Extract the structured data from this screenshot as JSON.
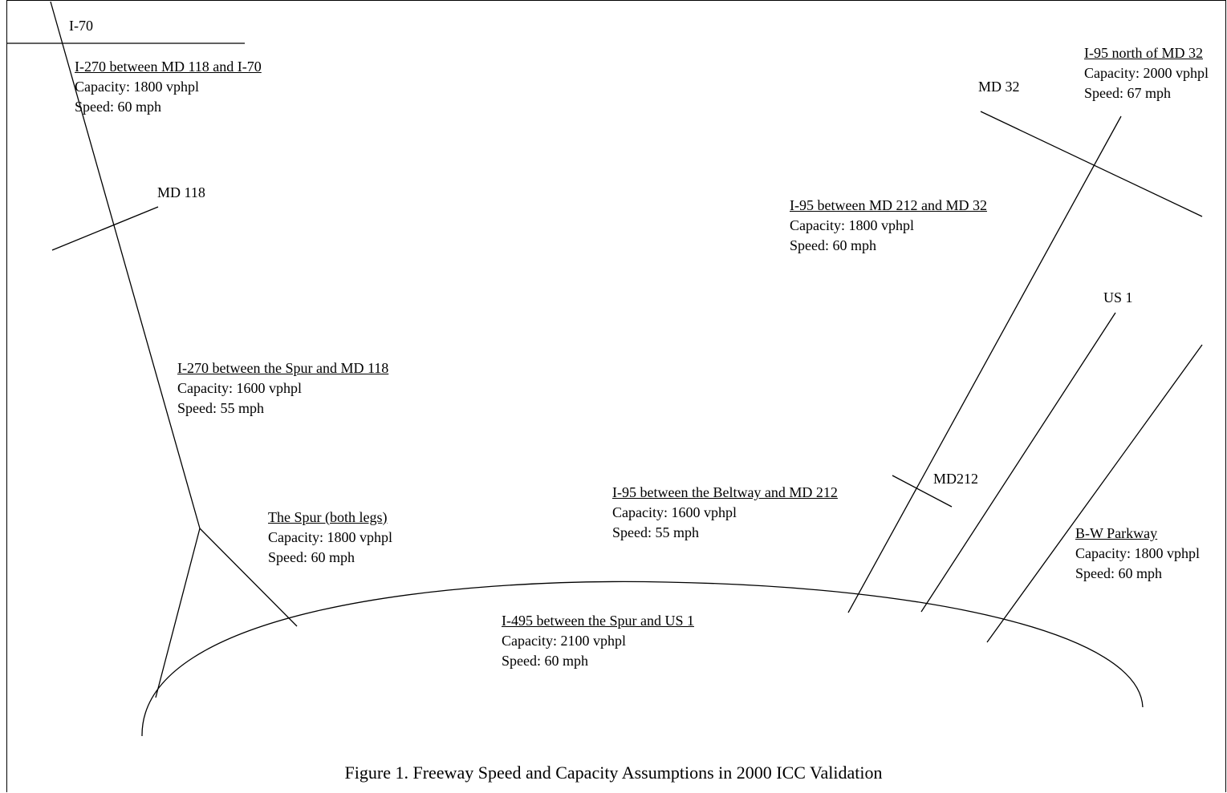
{
  "caption": "Figure 1. Freeway Speed and Capacity Assumptions in 2000 ICC Validation",
  "road_labels": {
    "i70": "I-70",
    "md118": "MD 118",
    "md32": "MD 32",
    "us1": "US 1",
    "md212": "MD212"
  },
  "segments": {
    "i270_north": {
      "title": "I-270 between MD 118 and I-70",
      "capacity": "Capacity: 1800 vphpl",
      "speed": "Speed: 60 mph"
    },
    "i270_south": {
      "title": "I-270 between the Spur and MD 118",
      "capacity": "Capacity: 1600 vphpl",
      "speed": "Speed: 55 mph"
    },
    "spur": {
      "title": "The Spur (both legs)",
      "capacity": "Capacity: 1800 vphpl",
      "speed": "Speed: 60 mph"
    },
    "i495": {
      "title": "I-495 between the Spur and US 1",
      "capacity": "Capacity: 2100 vphpl",
      "speed": "Speed: 60 mph"
    },
    "i95_beltway": {
      "title": "I-95 between the Beltway and MD 212",
      "capacity": "Capacity: 1600 vphpl",
      "speed": "Speed: 55 mph"
    },
    "i95_md212_md32": {
      "title": "I-95 between MD 212 and MD 32",
      "capacity": "Capacity: 1800 vphpl",
      "speed": "Speed: 60 mph"
    },
    "i95_north": {
      "title": "I-95 north of MD 32",
      "capacity": "Capacity: 2000 vphpl",
      "speed": "Speed: 67 mph"
    },
    "bw_parkway": {
      "title": "B-W Parkway",
      "capacity": "Capacity: 1800 vphpl",
      "speed": "Speed: 60 mph"
    }
  }
}
